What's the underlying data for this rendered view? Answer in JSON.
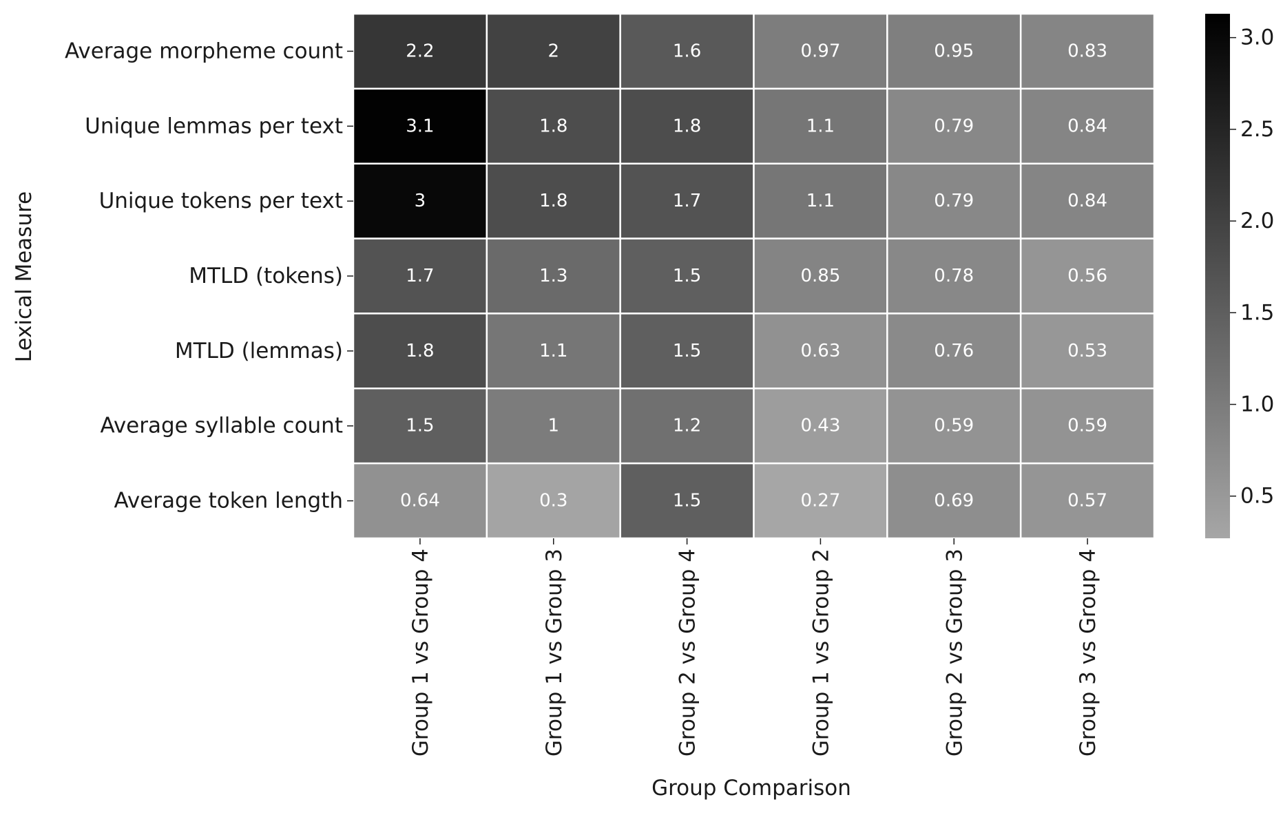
{
  "chart_data": {
    "type": "heatmap",
    "title": "",
    "xlabel": "Group Comparison",
    "ylabel": "Lexical Measure",
    "x_categories": [
      "Group 1 vs Group 4",
      "Group 1 vs Group 3",
      "Group 2 vs Group 4",
      "Group 1 vs Group 2",
      "Group 2 vs Group 3",
      "Group 3 vs Group 4"
    ],
    "y_categories": [
      "Average morpheme count",
      "Unique lemmas per text",
      "Unique tokens per text",
      "MTLD (tokens)",
      "MTLD (lemmas)",
      "Average syllable count",
      "Average token length"
    ],
    "values": [
      [
        2.2,
        2.0,
        1.6,
        0.97,
        0.95,
        0.83
      ],
      [
        3.1,
        1.8,
        1.8,
        1.1,
        0.79,
        0.84
      ],
      [
        3.0,
        1.8,
        1.7,
        1.1,
        0.79,
        0.84
      ],
      [
        1.7,
        1.3,
        1.5,
        0.85,
        0.78,
        0.56
      ],
      [
        1.8,
        1.1,
        1.5,
        0.63,
        0.76,
        0.53
      ],
      [
        1.5,
        1.0,
        1.2,
        0.43,
        0.59,
        0.59
      ],
      [
        0.64,
        0.3,
        1.5,
        0.27,
        0.69,
        0.57
      ]
    ],
    "annotations": [
      [
        "2.2",
        "2",
        "1.6",
        "0.97",
        "0.95",
        "0.83"
      ],
      [
        "3.1",
        "1.8",
        "1.8",
        "1.1",
        "0.79",
        "0.84"
      ],
      [
        "3",
        "1.8",
        "1.7",
        "1.1",
        "0.79",
        "0.84"
      ],
      [
        "1.7",
        "1.3",
        "1.5",
        "0.85",
        "0.78",
        "0.56"
      ],
      [
        "1.8",
        "1.1",
        "1.5",
        "0.63",
        "0.76",
        "0.53"
      ],
      [
        "1.5",
        "1",
        "1.2",
        "0.43",
        "0.59",
        "0.59"
      ],
      [
        "0.64",
        "0.3",
        "1.5",
        "0.27",
        "0.69",
        "0.57"
      ]
    ],
    "colorbar": {
      "min": 0.27,
      "max": 3.13,
      "ticks": [
        0.5,
        1.0,
        1.5,
        2.0,
        2.5,
        3.0
      ],
      "tick_labels": [
        "0.5",
        "1.0",
        "1.5",
        "2.0",
        "2.5",
        "3.0"
      ],
      "color_low": "#a6a6a6",
      "color_high": "#000000"
    },
    "annotation_color": "#ffffff",
    "cell_border_color": "#ffffff",
    "text_color": "#1a1a1a"
  }
}
